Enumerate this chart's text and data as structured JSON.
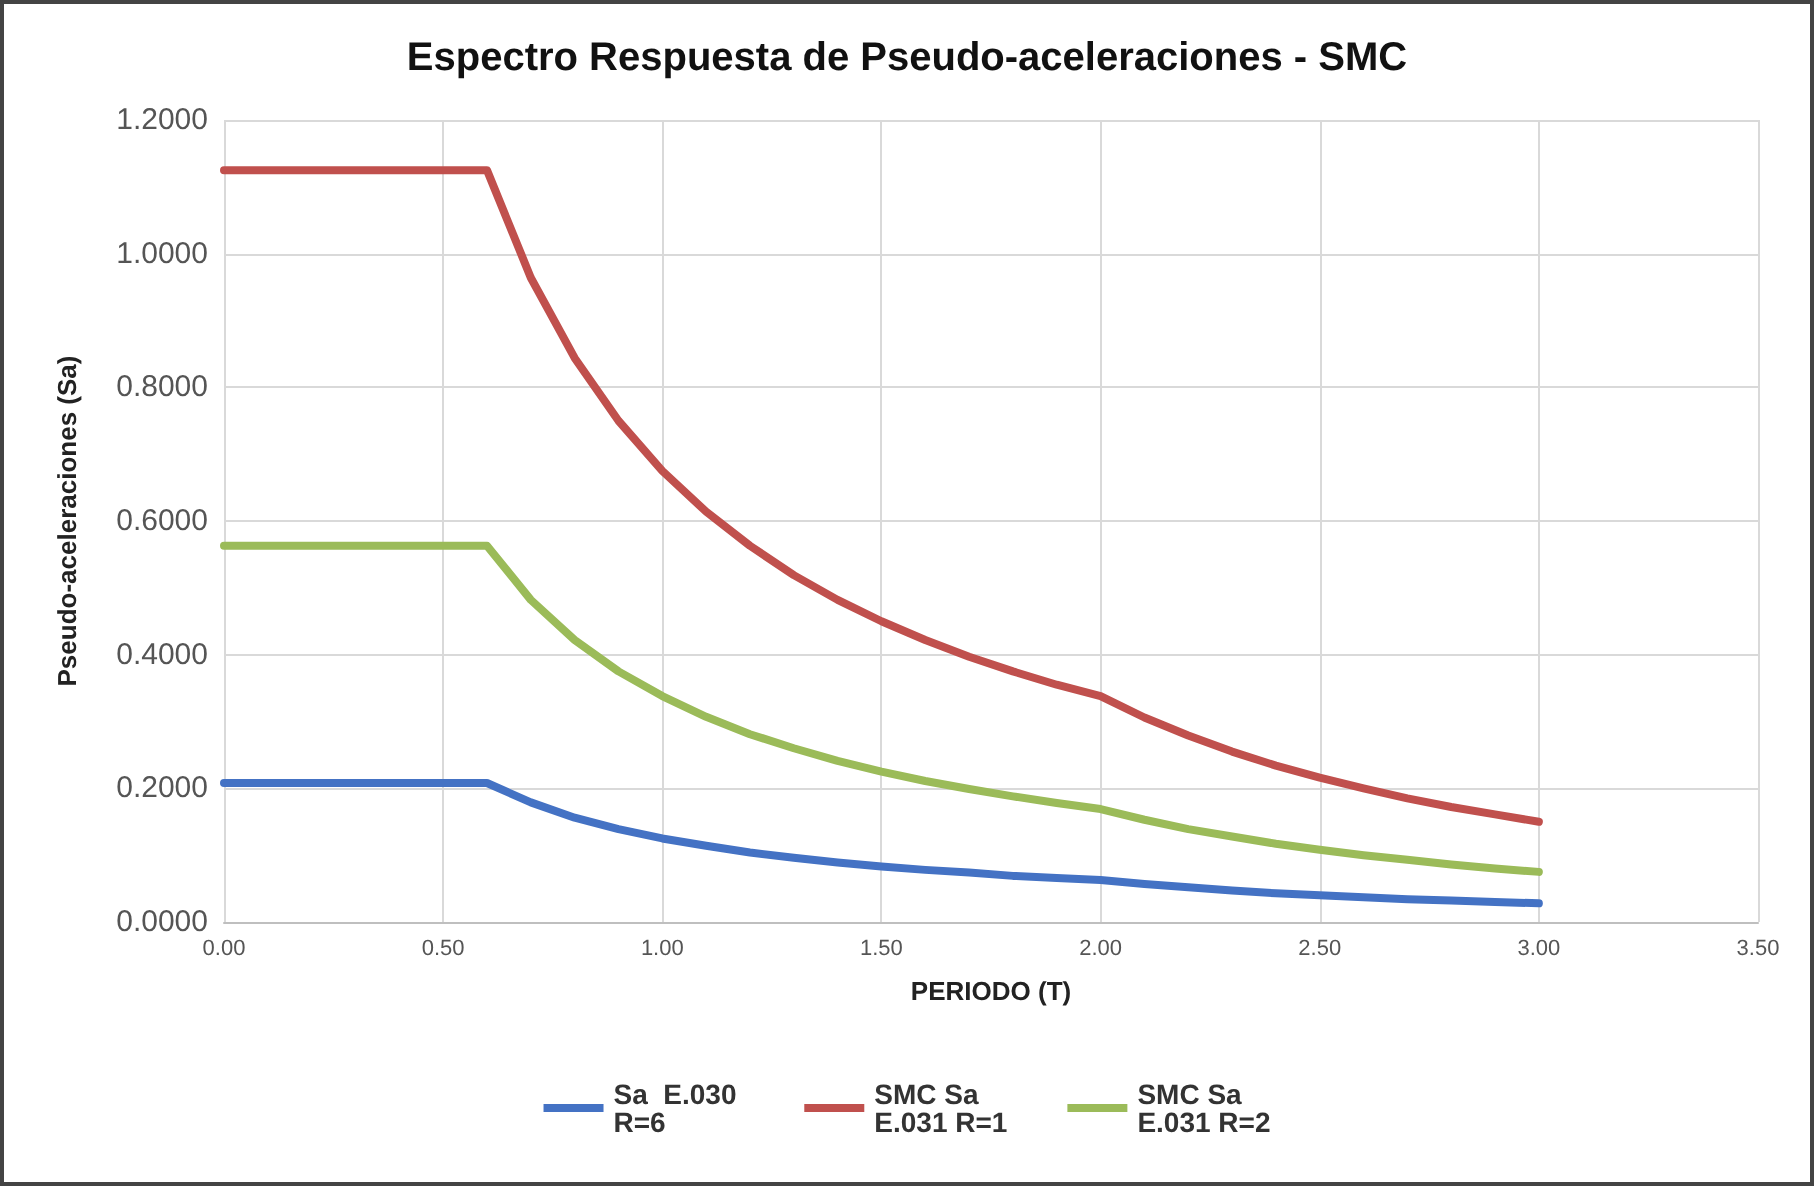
{
  "chart_data": {
    "type": "line",
    "title": "Espectro Respuesta de Pseudo-aceleraciones - SMC",
    "xlabel": "PERIODO (T)",
    "ylabel": "Pseudo-aceleraciones (Sa)",
    "x": [
      0,
      0.6,
      0.7,
      0.8,
      0.9,
      1.0,
      1.1,
      1.2,
      1.3,
      1.4,
      1.5,
      1.6,
      1.7,
      1.8,
      1.9,
      2.0,
      2.1,
      2.2,
      2.3,
      2.4,
      2.5,
      2.6,
      2.7,
      2.8,
      2.9,
      3.0
    ],
    "series": [
      {
        "name": "Sa  E.030 R=6",
        "color": "#4472c4",
        "values": [
          0.208,
          0.208,
          0.179,
          0.156,
          0.139,
          0.125,
          0.114,
          0.104,
          0.096,
          0.089,
          0.083,
          0.078,
          0.074,
          0.069,
          0.066,
          0.063,
          0.057,
          0.052,
          0.047,
          0.043,
          0.04,
          0.037,
          0.034,
          0.032,
          0.03,
          0.028
        ]
      },
      {
        "name": "SMC Sa E.031 R=1",
        "color": "#c0504d",
        "values": [
          1.125,
          1.125,
          0.964,
          0.844,
          0.75,
          0.675,
          0.614,
          0.563,
          0.519,
          0.482,
          0.45,
          0.422,
          0.397,
          0.375,
          0.355,
          0.338,
          0.306,
          0.279,
          0.255,
          0.234,
          0.216,
          0.2,
          0.185,
          0.172,
          0.161,
          0.15
        ]
      },
      {
        "name": "SMC Sa E.031 R=2",
        "color": "#9bbb59",
        "values": [
          0.563,
          0.563,
          0.482,
          0.422,
          0.375,
          0.338,
          0.307,
          0.281,
          0.26,
          0.241,
          0.225,
          0.211,
          0.199,
          0.188,
          0.178,
          0.169,
          0.153,
          0.139,
          0.128,
          0.117,
          0.108,
          0.1,
          0.093,
          0.086,
          0.08,
          0.075
        ]
      }
    ],
    "xlim": [
      0,
      3.5
    ],
    "xticks": [
      {
        "value": 0,
        "label": "0.00"
      },
      {
        "value": 0.5,
        "label": "0.50"
      },
      {
        "value": 1,
        "label": "1.00"
      },
      {
        "value": 1.5,
        "label": "1.50"
      },
      {
        "value": 2,
        "label": "2.00"
      },
      {
        "value": 2.5,
        "label": "2.50"
      },
      {
        "value": 3,
        "label": "3.00"
      },
      {
        "value": 3.5,
        "label": "3.50"
      }
    ],
    "ylim": [
      0,
      1.2
    ],
    "yticks": [
      {
        "value": 0,
        "label": "0.0000"
      },
      {
        "value": 0.2,
        "label": "0.2000"
      },
      {
        "value": 0.4,
        "label": "0.4000"
      },
      {
        "value": 0.6,
        "label": "0.6000"
      },
      {
        "value": 0.8,
        "label": "0.8000"
      },
      {
        "value": 1,
        "label": "1.0000"
      },
      {
        "value": 1.2,
        "label": "1.2000"
      }
    ],
    "grid": true,
    "legend": "bottom",
    "marker": "none",
    "line_style": "solid"
  }
}
